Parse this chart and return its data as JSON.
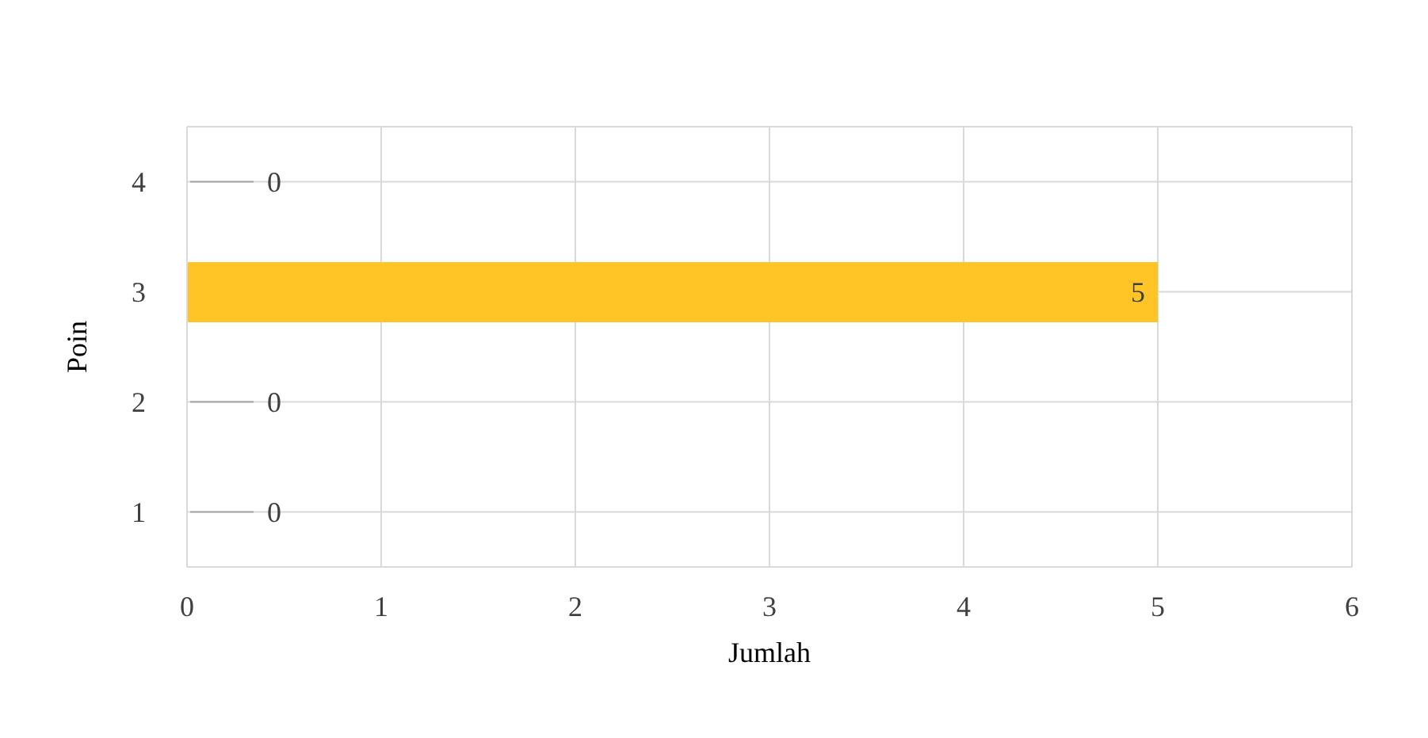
{
  "chart_data": {
    "type": "bar",
    "orientation": "horizontal",
    "categories": [
      "4",
      "3",
      "2",
      "1"
    ],
    "values": [
      0,
      5,
      0,
      0
    ],
    "color": "#ffc425",
    "xlim": [
      0,
      6
    ],
    "xticks": [
      0,
      1,
      2,
      3,
      4,
      5,
      6
    ],
    "xlabel": "Jumlah",
    "ylabel": "Poin",
    "grid": true,
    "data_labels": true
  }
}
